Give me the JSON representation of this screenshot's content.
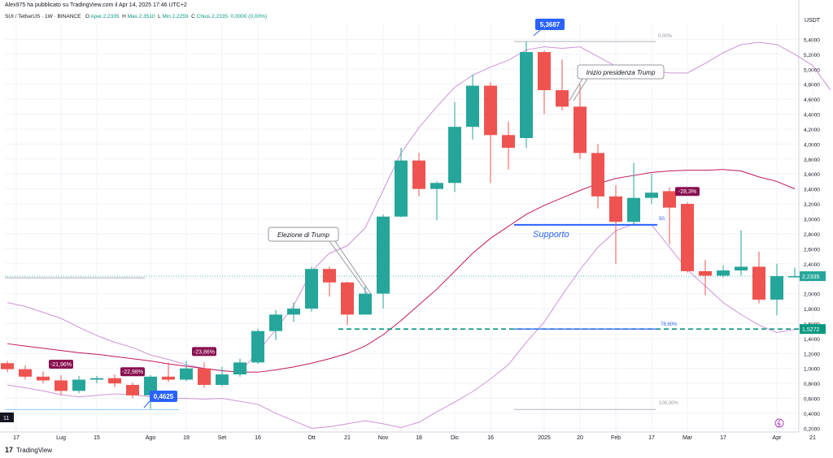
{
  "header": {
    "published": "Alex975 ha pubblicato su TradingView.com il Apr 14, 2025 17:46 UTC+2",
    "symbol_line": "SUI / TetherUS · 1W · BINANCE",
    "open_label": "O",
    "open_value": "Aper.2,2335",
    "high_label": "H",
    "high_value": "Max.2,3510",
    "low_label": "L",
    "low_value": "Min.2,2259",
    "close_label": "C",
    "close_value": "Chius.2,2335",
    "change_value": "0,0000 (0,00%)"
  },
  "footer": {
    "brand": "TradingView",
    "logo_text": "17"
  },
  "colors": {
    "up": "#26a69a",
    "down": "#ef5350",
    "blue": "#2962ff",
    "tag": "#2962ff",
    "maroon": "#880e4f",
    "sma": "#c2185b",
    "band": "#ce93d8",
    "fib": "#089981"
  },
  "chart_data": {
    "type": "candlestick",
    "title": "SUI / TetherUS · 1W · BINANCE",
    "currency": "USDT",
    "y_range": [
      0.15,
      5.6
    ],
    "y_ticks": [
      0.2,
      0.4,
      0.6,
      0.8,
      1.0,
      1.2,
      1.4,
      1.6,
      1.8,
      2.0,
      2.2,
      2.4,
      2.6,
      2.8,
      3.0,
      3.2,
      3.4,
      3.6,
      3.8,
      4.0,
      4.2,
      4.4,
      4.6,
      4.8,
      5.0,
      5.2,
      5.4
    ],
    "y_tick_labels": [
      "0,2000",
      "0,4000",
      "0,6000",
      "0,8000",
      "1,0000",
      "1,2000",
      "1,4000",
      "1,6000",
      "1,8000",
      "2,0000",
      "2,2000",
      "2,4000",
      "2,6000",
      "2,8000",
      "3,0000",
      "3,2000",
      "3,4000",
      "3,6000",
      "3,8000",
      "4,0000",
      "4,2000",
      "4,4000",
      "4,6000",
      "4,8000",
      "5,0000",
      "5,2000",
      "5,4000"
    ],
    "x_labels": [
      {
        "i": 0.5,
        "label": "17"
      },
      {
        "i": 3,
        "label": "Lug"
      },
      {
        "i": 5,
        "label": "15"
      },
      {
        "i": 8,
        "label": "Ago"
      },
      {
        "i": 10,
        "label": "19"
      },
      {
        "i": 12,
        "label": "Set"
      },
      {
        "i": 14,
        "label": "16"
      },
      {
        "i": 17,
        "label": "Ott"
      },
      {
        "i": 19,
        "label": "21"
      },
      {
        "i": 21,
        "label": "Nov"
      },
      {
        "i": 23,
        "label": "18"
      },
      {
        "i": 25,
        "label": "Dic"
      },
      {
        "i": 27,
        "label": "16"
      },
      {
        "i": 30,
        "label": "2025"
      },
      {
        "i": 32,
        "label": "20"
      },
      {
        "i": 34,
        "label": "Feb"
      },
      {
        "i": 36,
        "label": "17"
      },
      {
        "i": 38,
        "label": "Mar"
      },
      {
        "i": 40,
        "label": "17"
      },
      {
        "i": 43,
        "label": "Apr"
      },
      {
        "i": 45,
        "label": "21"
      }
    ],
    "candles": [
      {
        "o": 1.07,
        "h": 1.1,
        "l": 0.95,
        "c": 0.99
      },
      {
        "o": 0.99,
        "h": 1.04,
        "l": 0.85,
        "c": 0.89
      },
      {
        "o": 0.89,
        "h": 0.96,
        "l": 0.8,
        "c": 0.84
      },
      {
        "o": 0.84,
        "h": 0.91,
        "l": 0.64,
        "c": 0.7
      },
      {
        "o": 0.7,
        "h": 0.9,
        "l": 0.67,
        "c": 0.85
      },
      {
        "o": 0.85,
        "h": 0.9,
        "l": 0.8,
        "c": 0.87
      },
      {
        "o": 0.87,
        "h": 0.92,
        "l": 0.75,
        "c": 0.8
      },
      {
        "o": 0.78,
        "h": 0.81,
        "l": 0.6,
        "c": 0.64
      },
      {
        "o": 0.64,
        "h": 0.91,
        "l": 0.46,
        "c": 0.89
      },
      {
        "o": 0.89,
        "h": 1.08,
        "l": 0.82,
        "c": 0.85
      },
      {
        "o": 0.85,
        "h": 1.1,
        "l": 0.83,
        "c": 1.0
      },
      {
        "o": 1.0,
        "h": 1.08,
        "l": 0.74,
        "c": 0.78
      },
      {
        "o": 0.78,
        "h": 1.02,
        "l": 0.76,
        "c": 0.92
      },
      {
        "o": 0.92,
        "h": 1.13,
        "l": 0.89,
        "c": 1.08
      },
      {
        "o": 1.08,
        "h": 1.53,
        "l": 1.06,
        "c": 1.5
      },
      {
        "o": 1.5,
        "h": 1.78,
        "l": 1.38,
        "c": 1.72
      },
      {
        "o": 1.72,
        "h": 1.88,
        "l": 1.62,
        "c": 1.8
      },
      {
        "o": 1.8,
        "h": 2.36,
        "l": 1.76,
        "c": 2.33
      },
      {
        "o": 2.33,
        "h": 2.36,
        "l": 1.96,
        "c": 2.15
      },
      {
        "o": 2.15,
        "h": 2.16,
        "l": 1.58,
        "c": 1.72
      },
      {
        "o": 1.72,
        "h": 2.1,
        "l": 1.72,
        "c": 2.0
      },
      {
        "o": 2.0,
        "h": 3.06,
        "l": 1.8,
        "c": 3.03
      },
      {
        "o": 3.03,
        "h": 3.95,
        "l": 3.02,
        "c": 3.78
      },
      {
        "o": 3.78,
        "h": 3.88,
        "l": 3.3,
        "c": 3.4
      },
      {
        "o": 3.4,
        "h": 3.5,
        "l": 2.98,
        "c": 3.48
      },
      {
        "o": 3.48,
        "h": 4.56,
        "l": 3.36,
        "c": 4.23
      },
      {
        "o": 4.23,
        "h": 4.93,
        "l": 4.06,
        "c": 4.78
      },
      {
        "o": 4.78,
        "h": 4.83,
        "l": 3.48,
        "c": 4.12
      },
      {
        "o": 4.12,
        "h": 4.3,
        "l": 3.66,
        "c": 3.95
      },
      {
        "o": 4.08,
        "h": 5.37,
        "l": 3.95,
        "c": 5.23
      },
      {
        "o": 5.23,
        "h": 5.25,
        "l": 4.4,
        "c": 4.72
      },
      {
        "o": 4.72,
        "h": 5.13,
        "l": 4.45,
        "c": 4.5
      },
      {
        "o": 4.5,
        "h": 4.8,
        "l": 3.8,
        "c": 3.88
      },
      {
        "o": 3.88,
        "h": 4.0,
        "l": 3.14,
        "c": 3.3
      },
      {
        "o": 3.3,
        "h": 3.45,
        "l": 2.4,
        "c": 2.96
      },
      {
        "o": 2.96,
        "h": 3.75,
        "l": 2.92,
        "c": 3.28
      },
      {
        "o": 3.28,
        "h": 3.6,
        "l": 3.2,
        "c": 3.35
      },
      {
        "o": 3.37,
        "h": 3.42,
        "l": 2.66,
        "c": 3.15
      },
      {
        "o": 3.2,
        "h": 3.22,
        "l": 2.28,
        "c": 2.3
      },
      {
        "o": 2.3,
        "h": 2.45,
        "l": 1.98,
        "c": 2.24
      },
      {
        "o": 2.24,
        "h": 2.38,
        "l": 2.22,
        "c": 2.31
      },
      {
        "o": 2.31,
        "h": 2.85,
        "l": 2.24,
        "c": 2.36
      },
      {
        "o": 2.36,
        "h": 2.56,
        "l": 1.87,
        "c": 1.92
      },
      {
        "o": 1.92,
        "h": 2.4,
        "l": 1.71,
        "c": 2.2335
      },
      {
        "o": 2.2335,
        "h": 2.351,
        "l": 2.2259,
        "c": 2.2335
      }
    ],
    "sma": [
      1.33,
      1.3,
      1.27,
      1.24,
      1.21,
      1.19,
      1.16,
      1.13,
      1.1,
      1.06,
      1.03,
      1.0,
      0.97,
      0.95,
      0.95,
      0.98,
      1.02,
      1.07,
      1.13,
      1.2,
      1.3,
      1.45,
      1.64,
      1.85,
      2.06,
      2.3,
      2.54,
      2.74,
      2.9,
      3.06,
      3.18,
      3.28,
      3.38,
      3.47,
      3.54,
      3.58,
      3.62,
      3.64,
      3.65,
      3.65,
      3.66,
      3.64,
      3.56,
      3.5,
      3.4
    ],
    "band_upper": [
      1.88,
      1.83,
      1.75,
      1.67,
      1.55,
      1.44,
      1.35,
      1.28,
      1.18,
      1.12,
      1.05,
      1.0,
      0.97,
      0.95,
      1.22,
      1.52,
      1.84,
      2.3,
      2.54,
      2.64,
      2.88,
      3.38,
      3.88,
      4.22,
      4.5,
      4.76,
      4.92,
      5.03,
      5.12,
      5.26,
      5.3,
      5.28,
      5.3,
      5.17,
      5.04,
      5.0,
      4.98,
      4.95,
      4.95,
      5.08,
      5.22,
      5.33,
      5.36,
      5.33,
      5.2,
      5.05,
      4.72
    ],
    "band_lower": [
      0.78,
      0.74,
      0.7,
      0.65,
      0.62,
      0.64,
      0.66,
      0.65,
      0.62,
      0.6,
      0.6,
      0.59,
      0.6,
      0.56,
      0.52,
      0.4,
      0.3,
      0.2,
      0.22,
      0.26,
      0.3,
      0.26,
      0.21,
      0.28,
      0.42,
      0.55,
      0.69,
      0.86,
      1.05,
      1.35,
      1.62,
      1.98,
      2.32,
      2.62,
      2.84,
      2.93,
      2.92,
      2.62,
      2.32,
      2.1,
      1.88,
      1.72,
      1.58,
      1.48,
      1.52
    ],
    "price_labels": [
      {
        "label": "5,3687",
        "type": "high_tag"
      },
      {
        "label": "0,4625",
        "type": "low_tag"
      },
      {
        "label": "2,2335",
        "type": "last_price",
        "value": 2.2335
      },
      {
        "label": "1,5272",
        "type": "fib_line",
        "value": 1.5272
      }
    ],
    "pct_tags": [
      {
        "label": "-21,96%",
        "i": 3
      },
      {
        "label": "-22,98%",
        "i": 7
      },
      {
        "label": "-23,86%",
        "i": 11
      },
      {
        "label": "-28,3%",
        "i": 38
      }
    ],
    "annotations": {
      "election": "Elezione di Trump",
      "inauguration": "Inizio presidenza Trump",
      "support": "Supporto",
      "support_level": 2.92,
      "fib_0": "0,00%",
      "fib_50": "50,",
      "fib_786": "78,60%",
      "fib_100": "100,00%",
      "fib_0_value": 5.37,
      "fib_50_value": 2.92,
      "fib_786_value": 1.5272,
      "fib_100_value": 0.4625,
      "left_ticker": "11"
    }
  }
}
